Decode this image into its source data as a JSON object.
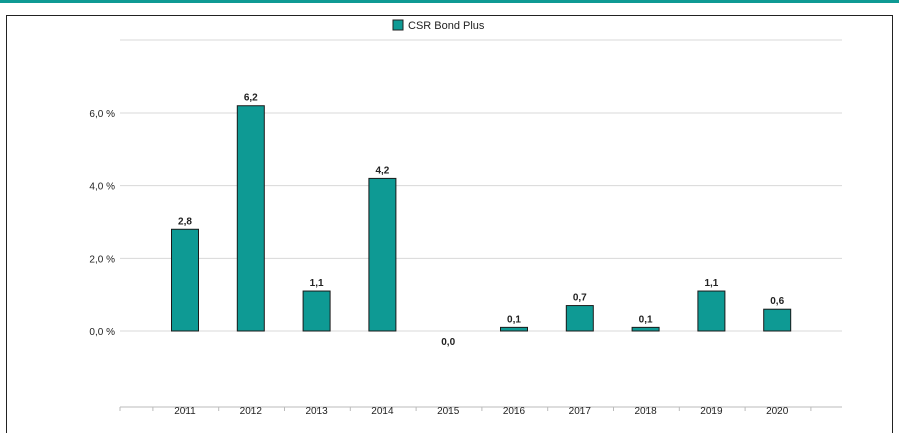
{
  "chart_data": {
    "type": "bar",
    "categories": [
      "2011",
      "2012",
      "2013",
      "2014",
      "2015",
      "2016",
      "2017",
      "2018",
      "2019",
      "2020"
    ],
    "series": [
      {
        "name": "CSR Bond Plus",
        "values": [
          2.8,
          6.2,
          1.1,
          4.2,
          0.0,
          0.1,
          0.7,
          0.1,
          1.1,
          0.6
        ],
        "labels": [
          "2,8",
          "6,2",
          "1,1",
          "4,2",
          "0,0",
          "0,1",
          "0,7",
          "0,1",
          "1,1",
          "0,6"
        ]
      }
    ],
    "ylim": [
      0,
      6
    ],
    "yticks": [
      {
        "value": 0,
        "label": "0,0 %"
      },
      {
        "value": 2,
        "label": "2,0 %"
      },
      {
        "value": 4,
        "label": "4,0 %"
      },
      {
        "value": 6,
        "label": "6,0 %"
      }
    ],
    "grid": true,
    "legend_position": "top-center",
    "bar_color": "#0e9a94"
  }
}
